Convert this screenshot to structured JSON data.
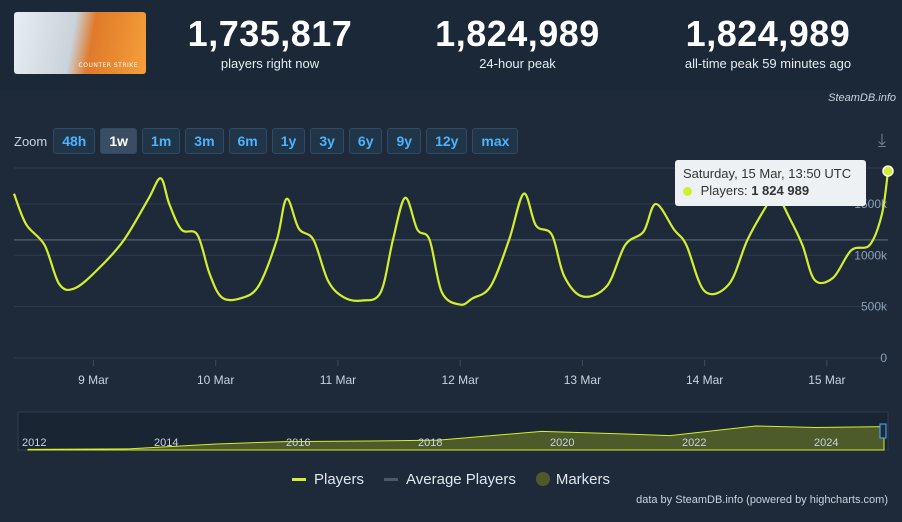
{
  "header": {
    "game_logo_text": "COUNTER STRIKE",
    "stats": [
      {
        "value": "1,735,817",
        "label": "players right now"
      },
      {
        "value": "1,824,989",
        "label": "24-hour peak"
      },
      {
        "value": "1,824,989",
        "label": "all-time peak 59 minutes ago"
      }
    ],
    "credit_top": "SteamDB.info"
  },
  "zoom": {
    "label": "Zoom",
    "buttons": [
      "48h",
      "1w",
      "1m",
      "3m",
      "6m",
      "1y",
      "3y",
      "6y",
      "9y",
      "12y",
      "max"
    ],
    "active": "1w"
  },
  "tooltip": {
    "date": "Saturday, 15 Mar, 13:50 UTC",
    "series_label": "Players:",
    "value": "1 824 989"
  },
  "legend": [
    "Players",
    "Average Players",
    "Markers"
  ],
  "credit_bottom": "data by SteamDB.info (powered by highcharts.com)",
  "colors": {
    "players": "#d2ef2f",
    "average": "#4a5a6a",
    "markers": "#4d5a2a",
    "button_text": "#4db2ff",
    "background": "#1b2838"
  },
  "chart_data": {
    "type": "line",
    "series": [
      {
        "name": "Players",
        "x": [
          8.35,
          8.45,
          8.6,
          8.72,
          8.85,
          9.05,
          9.25,
          9.45,
          9.55,
          9.62,
          9.72,
          9.85,
          9.95,
          10.05,
          10.2,
          10.35,
          10.5,
          10.58,
          10.68,
          10.8,
          10.92,
          11.05,
          11.2,
          11.35,
          11.45,
          11.55,
          11.65,
          11.75,
          11.85,
          12.0,
          12.1,
          12.25,
          12.4,
          12.52,
          12.62,
          12.75,
          12.85,
          13.0,
          13.2,
          13.35,
          13.5,
          13.6,
          13.75,
          13.85,
          14.0,
          14.2,
          14.35,
          14.5,
          14.58,
          14.7,
          14.8,
          14.9,
          15.05,
          15.2,
          15.35,
          15.45,
          15.5
        ],
        "y": [
          1600,
          1300,
          1100,
          720,
          680,
          880,
          1150,
          1550,
          1750,
          1500,
          1250,
          1200,
          820,
          590,
          580,
          700,
          1150,
          1550,
          1260,
          1150,
          750,
          590,
          560,
          640,
          1150,
          1560,
          1250,
          1150,
          640,
          520,
          580,
          700,
          1150,
          1600,
          1290,
          1200,
          800,
          600,
          700,
          1100,
          1230,
          1500,
          1250,
          1100,
          650,
          720,
          1150,
          1470,
          1600,
          1350,
          1100,
          760,
          780,
          1050,
          1100,
          1400,
          1820
        ]
      },
      {
        "name": "Average Players",
        "x": [
          8.35,
          15.5
        ],
        "y": [
          1150,
          1150
        ]
      }
    ],
    "x_ticks": [
      "9 Mar",
      "10 Mar",
      "11 Mar",
      "12 Mar",
      "13 Mar",
      "14 Mar",
      "15 Mar"
    ],
    "y_ticks": [
      "0",
      "500k",
      "1000k",
      "1500k"
    ],
    "ylim": [
      0,
      1850
    ],
    "navigator": {
      "years": [
        "2012",
        "2014",
        "2016",
        "2018",
        "2020",
        "2022",
        "2024"
      ]
    }
  }
}
